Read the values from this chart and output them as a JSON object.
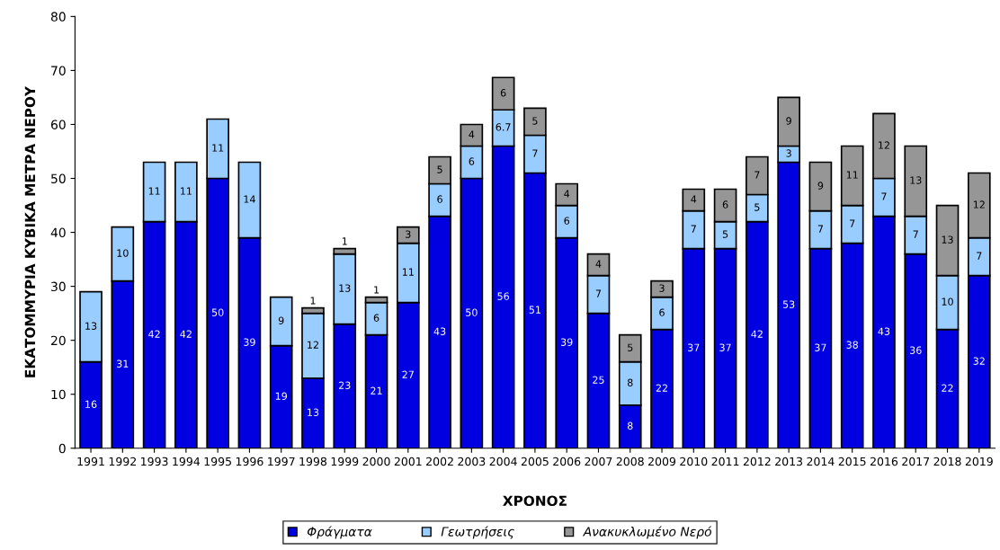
{
  "chart_data": {
    "type": "bar",
    "stacked": true,
    "xlabel": "ΧΡΟΝΟΣ",
    "ylabel": "ΕΚΑΤΟΜΜΥΡΙΑ ΚΥΒΙΚΑ ΜΕΤΡΑ ΝΕΡΟΥ",
    "categories": [
      "1991",
      "1992",
      "1993",
      "1994",
      "1995",
      "1996",
      "1997",
      "1998",
      "1999",
      "2000",
      "2001",
      "2002",
      "2003",
      "2004",
      "2005",
      "2006",
      "2007",
      "2008",
      "2009",
      "2010",
      "2011",
      "2012",
      "2013",
      "2014",
      "2015",
      "2016",
      "2017",
      "2018",
      "2019"
    ],
    "series": [
      {
        "name": "Φράγματα",
        "color": "#0000e0",
        "values": [
          16,
          31,
          42,
          42,
          50,
          39,
          19,
          13,
          23,
          21,
          27,
          43,
          50,
          56,
          51,
          39,
          25,
          8,
          22,
          37,
          37,
          42,
          53,
          37,
          38,
          43,
          36,
          22,
          32
        ]
      },
      {
        "name": "Γεωτρήσεις",
        "color": "#99ccff",
        "values": [
          13,
          10,
          11,
          11,
          11,
          14,
          9,
          12,
          13,
          6,
          11,
          6,
          6,
          6.7,
          7,
          6,
          7,
          8,
          6,
          7,
          5,
          5,
          3,
          7,
          7,
          7,
          7,
          10,
          7
        ]
      },
      {
        "name": "Ανακυκλωμένο Νερό",
        "color": "#969696",
        "values": [
          null,
          null,
          null,
          null,
          null,
          null,
          null,
          1,
          1,
          1,
          3,
          5,
          4,
          6,
          5,
          4,
          4,
          5,
          3,
          4,
          6,
          7,
          9,
          9,
          11,
          12,
          13,
          13,
          12
        ]
      }
    ],
    "ylim": [
      0,
      80
    ],
    "yticks": [
      0,
      10,
      20,
      30,
      40,
      50,
      60,
      70,
      80
    ],
    "data_labels": true,
    "legend": "bottom",
    "grid": false
  }
}
